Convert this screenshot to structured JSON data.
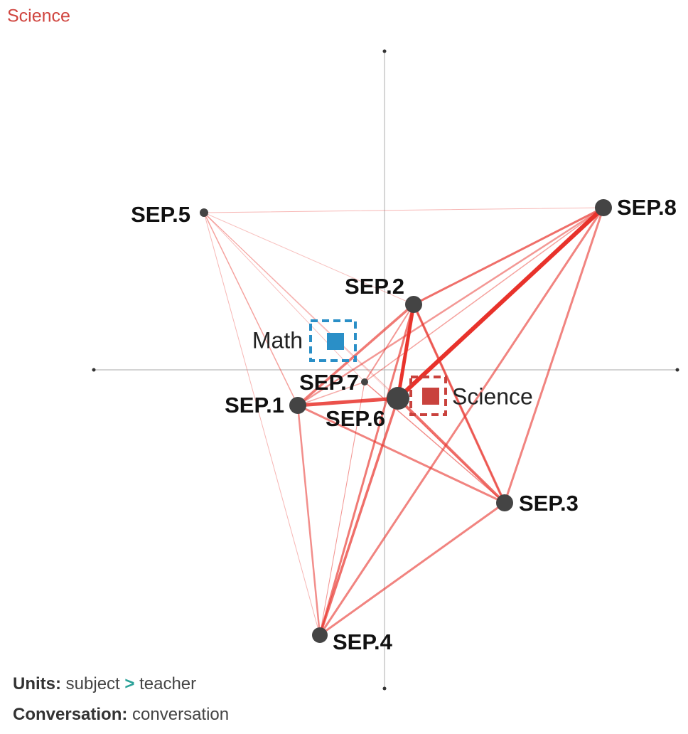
{
  "header": {
    "title": "Science"
  },
  "nodes": [
    {
      "label": "SEP.1"
    },
    {
      "label": "SEP.2"
    },
    {
      "label": "SEP.3"
    },
    {
      "label": "SEP.4"
    },
    {
      "label": "SEP.5"
    },
    {
      "label": "SEP.6"
    },
    {
      "label": "SEP.7"
    },
    {
      "label": "SEP.8"
    }
  ],
  "centroids": [
    {
      "label": "Math"
    },
    {
      "label": "Science"
    }
  ],
  "footer": {
    "units": {
      "key": "Units:",
      "parts": [
        "subject",
        ">",
        "teacher"
      ]
    },
    "conversation": {
      "key": "Conversation:",
      "value": "conversation"
    }
  }
}
